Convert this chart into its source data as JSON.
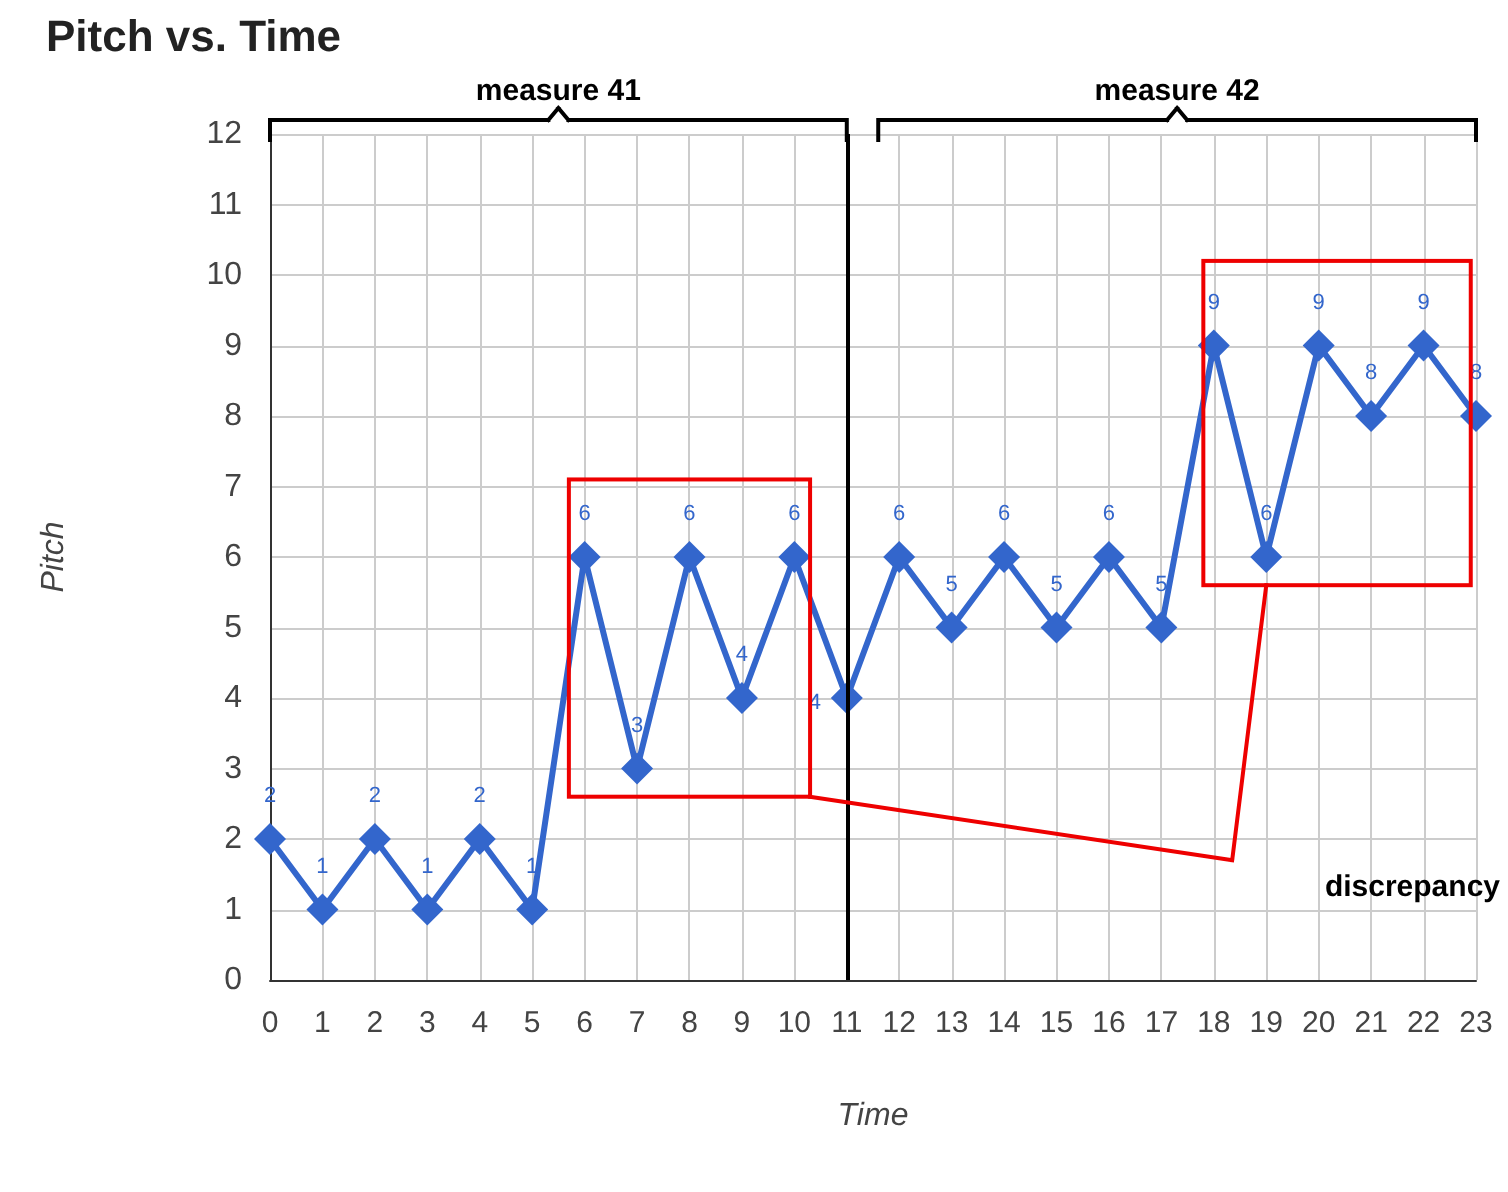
{
  "chart_data": {
    "type": "line",
    "title": "Pitch vs. Time",
    "xlabel": "Time",
    "ylabel": "Pitch",
    "x": [
      0,
      1,
      2,
      3,
      4,
      5,
      6,
      7,
      8,
      9,
      10,
      11,
      12,
      13,
      14,
      15,
      16,
      17,
      18,
      19,
      20,
      21,
      22,
      23
    ],
    "series": [
      {
        "color": "#3366cc",
        "values": [
          2,
          1,
          2,
          1,
          2,
          1,
          6,
          3,
          6,
          4,
          6,
          4,
          6,
          5,
          6,
          5,
          6,
          5,
          9,
          6,
          9,
          8,
          9,
          8
        ]
      }
    ],
    "xlim": [
      0,
      23
    ],
    "xticks": [
      0,
      1,
      2,
      3,
      4,
      5,
      6,
      7,
      8,
      9,
      10,
      11,
      12,
      13,
      14,
      15,
      16,
      17,
      18,
      19,
      20,
      21,
      22,
      23
    ],
    "ylim": [
      0,
      12
    ],
    "yticks": [
      0,
      1,
      2,
      3,
      4,
      5,
      6,
      7,
      8,
      9,
      10,
      11,
      12
    ],
    "ref_lines": [
      {
        "axis": "x",
        "value": 11,
        "color": "#000000"
      }
    ],
    "annotations": [
      "measure 41",
      "measure 42",
      "discrepancy"
    ],
    "data_labels": true,
    "grid": true,
    "marker": "diamond",
    "line_style": "solid"
  }
}
